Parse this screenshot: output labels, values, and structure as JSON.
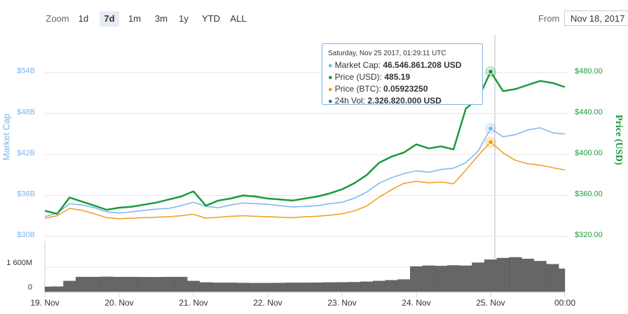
{
  "controls": {
    "zoom_label": "Zoom",
    "buttons": [
      "1d",
      "7d",
      "1m",
      "3m",
      "1y",
      "YTD",
      "ALL"
    ],
    "selected": "7d",
    "from_label": "From",
    "from_value": "Nov 18, 2017"
  },
  "tooltip": {
    "date": "Saturday, Nov 25 2017, 01:29:11 UTC",
    "items": [
      {
        "label": "Market Cap:",
        "value": "46.546.861.208 USD",
        "color": "#7cb5ec"
      },
      {
        "label": "Price (USD):",
        "value": "485.19",
        "color": "#1a9a3a"
      },
      {
        "label": "Price (BTC):",
        "value": "0.05923250",
        "color": "#f29b1d"
      },
      {
        "label": "24h Vol:",
        "value": "2.326.820.000 USD",
        "color": "#666666"
      }
    ]
  },
  "chart_data": {
    "type": "line",
    "y_label": "Market Cap",
    "y2_label": "Price (USD)",
    "categories": [
      "19. Nov",
      null,
      null,
      null,
      null,
      null,
      "20. Nov",
      null,
      null,
      null,
      null,
      null,
      "21. Nov",
      null,
      null,
      null,
      null,
      null,
      "22. Nov",
      null,
      null,
      null,
      null,
      null,
      "23. Nov",
      null,
      null,
      null,
      null,
      null,
      "24. Nov",
      null,
      null,
      null,
      null,
      null,
      "25. Nov",
      null,
      null,
      null,
      null,
      null,
      "00:00"
    ],
    "ylim": [
      30,
      59
    ],
    "yticks": [
      {
        "value": 30,
        "label": "$30B"
      },
      {
        "value": 36,
        "label": "$36B"
      },
      {
        "value": 42,
        "label": "$42B"
      },
      {
        "value": 48,
        "label": "$48B"
      },
      {
        "value": 54,
        "label": "$54B"
      }
    ],
    "y2lim": [
      320,
      513.5
    ],
    "y2ticks": [
      {
        "value": 320,
        "label": "$320.00"
      },
      {
        "value": 360,
        "label": "$360.00"
      },
      {
        "value": 400,
        "label": "$400.00"
      },
      {
        "value": 440,
        "label": "$440.00"
      },
      {
        "value": 480,
        "label": "$480.00"
      }
    ],
    "y3lim": [
      0.04,
      0.0803
    ],
    "y4lim": [
      0,
      3300
    ],
    "y4ticks": [
      0,
      {
        "value": 1600,
        "label": "1 600M"
      }
    ],
    "grid": true,
    "series": [
      {
        "name": "Market Cap",
        "color": "#7cb5ec",
        "axis": "y",
        "values": [
          32.9,
          33.4,
          34.8,
          34.6,
          34.2,
          33.6,
          33.4,
          33.6,
          33.8,
          34.0,
          34.1,
          34.5,
          35.0,
          34.4,
          34.2,
          34.6,
          34.9,
          34.8,
          34.7,
          34.5,
          34.3,
          34.4,
          34.5,
          34.8,
          35.0,
          35.6,
          36.5,
          37.8,
          38.6,
          39.2,
          39.6,
          39.4,
          39.8,
          40.0,
          40.8,
          42.5,
          45.8,
          44.6,
          44.9,
          45.6,
          45.9,
          45.2,
          45.0
        ]
      },
      {
        "name": "Price (BTC)",
        "color": "#f29b1d",
        "axis": "y3",
        "values": [
          0.0437,
          0.0442,
          0.0457,
          0.0453,
          0.0446,
          0.0438,
          0.0436,
          0.0437,
          0.0438,
          0.0439,
          0.044,
          0.0442,
          0.0445,
          0.0437,
          0.0439,
          0.0441,
          0.0442,
          0.0441,
          0.044,
          0.0439,
          0.0438,
          0.044,
          0.0441,
          0.0443,
          0.0446,
          0.0452,
          0.0462,
          0.048,
          0.0495,
          0.0508,
          0.0512,
          0.0509,
          0.0511,
          0.0507,
          0.0535,
          0.0565,
          0.0592,
          0.057,
          0.0555,
          0.0548,
          0.0545,
          0.054,
          0.0535
        ]
      },
      {
        "name": "Price (USD)",
        "color": "#1a9a3a",
        "axis": "y2",
        "values": [
          345,
          342,
          358,
          354,
          350,
          346,
          348,
          349,
          351,
          353,
          356,
          359,
          364,
          350,
          355,
          357,
          360,
          359,
          357,
          356,
          355,
          357,
          359,
          362,
          366,
          372,
          380,
          392,
          398,
          402,
          410,
          406,
          408,
          405,
          445,
          455,
          481,
          462,
          464,
          468,
          472,
          470,
          466
        ]
      },
      {
        "name": "24h Vol",
        "color": "#666666",
        "axis": "y4",
        "values": [
          320,
          330,
          700,
          960,
          960,
          970,
          960,
          960,
          950,
          950,
          960,
          960,
          700,
          600,
          580,
          580,
          570,
          560,
          560,
          570,
          580,
          580,
          590,
          600,
          610,
          620,
          650,
          700,
          750,
          800,
          1650,
          1700,
          1680,
          1720,
          1700,
          1900,
          2100,
          2200,
          2250,
          2150,
          2000,
          1800,
          1500
        ]
      }
    ]
  }
}
